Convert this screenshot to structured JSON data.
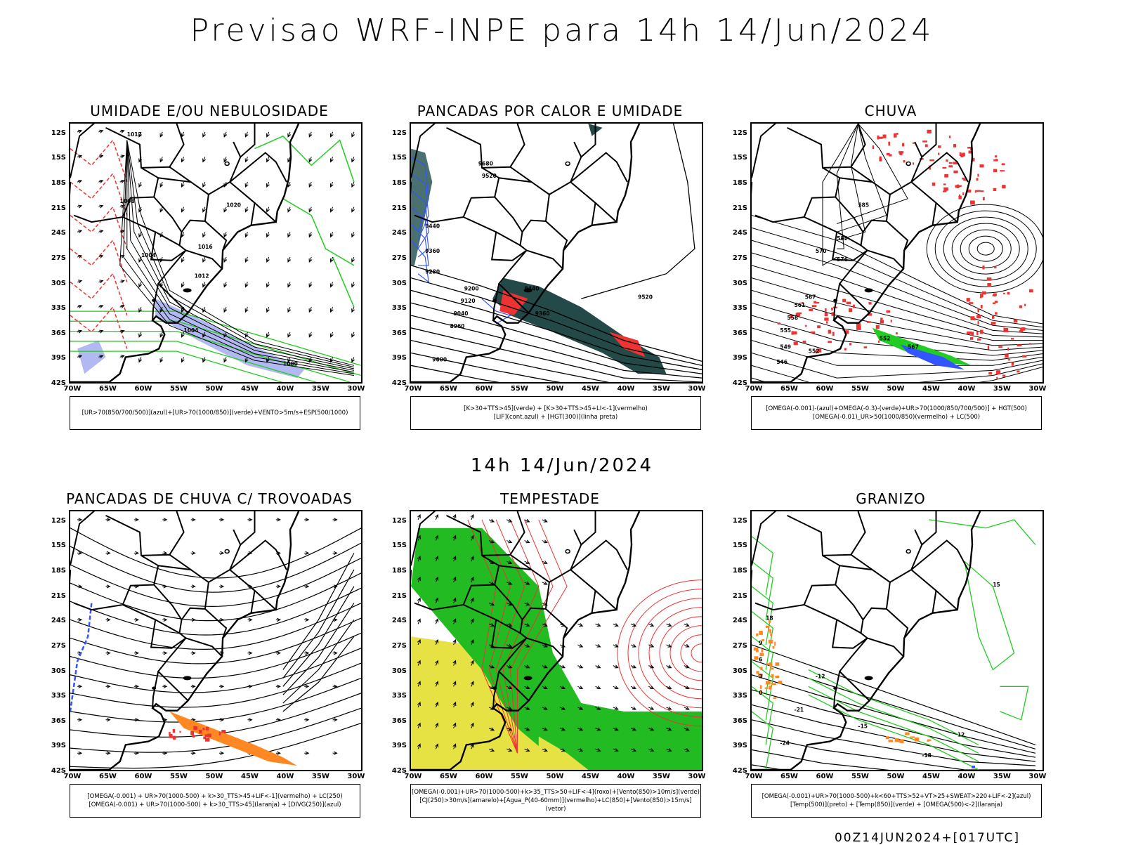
{
  "title": "Previsao WRF-INPE  para 14h 14/Jun/2024",
  "subtitle": "14h 14/Jun/2024",
  "footer": "00Z14JUN2024+[017UTC]",
  "lat_labels": [
    "12S",
    "15S",
    "18S",
    "21S",
    "24S",
    "27S",
    "30S",
    "33S",
    "36S",
    "39S",
    "42S"
  ],
  "lon_labels": [
    "70W",
    "65W",
    "60W",
    "55W",
    "50W",
    "45W",
    "40W",
    "35W",
    "30W"
  ],
  "colors": {
    "blue": "#3355ff",
    "green": "#22cc22",
    "red": "#ee3333",
    "orange": "#ff8822",
    "yellow": "#e6e244",
    "darkgreen": "#234a48",
    "lavender": "#aab0f0"
  },
  "panels": [
    {
      "title": "UMIDADE E/OU NEBULOSIDADE",
      "legend": [
        "[UR>70(850/700/500)](azul)+[UR>70(1000/850)](verde)+VENTO>5m/s+ESP(500/1000)"
      ],
      "labels": [
        "1012",
        "1020",
        "1016",
        "1008",
        "1004",
        "1012",
        "1004",
        "1000"
      ]
    },
    {
      "title": "PANCADAS POR CALOR E UMIDADE",
      "legend": [
        "[K>30+TTS>45](verde) + [K>30+TTS>45+LI<-1](vermelho)",
        "[LIF](cont.azul) + [HGT(300)](linha preta)"
      ],
      "labels": [
        "9680",
        "9520",
        "9440",
        "9360",
        "9280",
        "9200",
        "9120",
        "9040",
        "8960",
        "9600",
        "9520",
        "9440",
        "9360"
      ]
    },
    {
      "title": "CHUVA",
      "legend": [
        "[OMEGA(-0.001)-(azul)+OMEGA(-0.3)-(verde)+UR>70(1000/850/700/500)] + HGT(500)",
        "[OMEGA(-0.01)_UR>50(1000/850)(vermelho) + LC(500)"
      ],
      "labels": [
        "585",
        "582",
        "576",
        "570",
        "567",
        "561",
        "558",
        "555",
        "552",
        "549",
        "546",
        "567",
        "552"
      ]
    },
    {
      "title": "PANCADAS DE CHUVA C/ TROVOADAS",
      "legend": [
        "[OMEGA(-0.001) + UR>70(1000-500) + k>30_TTS>45+LIF<-1](vermelho) + LC(250)",
        "[OMEGA(-0.001) + UR>70(1000-500) + k>30_TTS>45](laranja) + [DIVG(250)](azul)"
      ],
      "labels": []
    },
    {
      "title": "TEMPESTADE",
      "legend": [
        "[OMEGA(-0.001)+UR>70(1000-500)+k>35_TTS>50+LIF<-4](roxo)+[Vento(850)>10m/s](verde)",
        "[CJ(250)>30m/s](amarelo)+[Agua_P(40-60mm)](vermelho)+LC(850)+[Vento(850)>15m/s](vetor)"
      ],
      "labels": []
    },
    {
      "title": "GRANIZO",
      "legend": [
        "[OMEGA(-0.001)+UR>70(1000-500)+k<60+TTS>52+VT>25+SWEAT>220+LIF<-2](azul)",
        "[Temp(500)](preto) + [Temp(850)](verde) + [OMEGA(500)<-2](laranja)"
      ],
      "labels": [
        "-12",
        "-15",
        "-18",
        "-21",
        "-24",
        "15",
        "18",
        "12",
        "9",
        "6",
        "3",
        "0"
      ]
    }
  ]
}
